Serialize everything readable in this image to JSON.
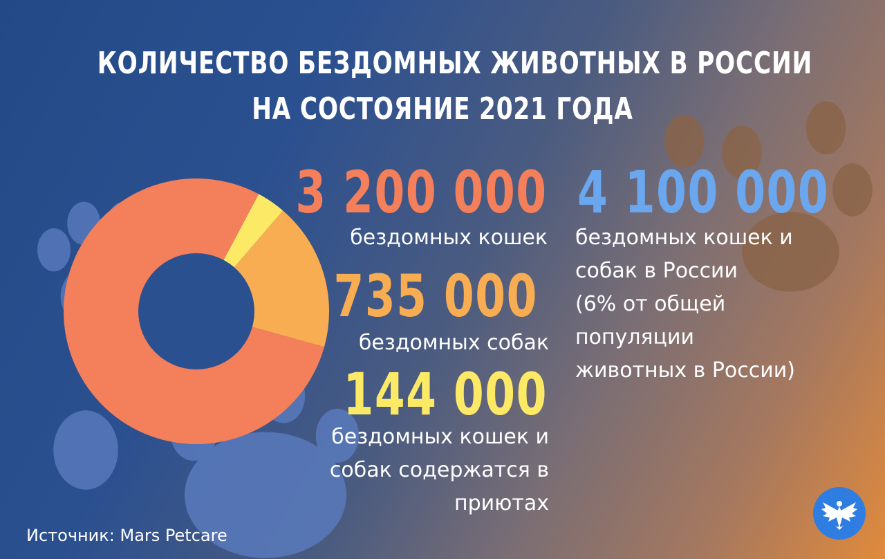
{
  "title_line1": "КОЛИЧЕСТВО БЕЗДОМНЫХ ЖИВОТНЫХ В РОССИИ",
  "title_line2": "НА СОСТОЯНИЕ 2021 ГОДА",
  "stats": {
    "cats_value": "3 200 000",
    "cats_label": "бездомных кошек",
    "dogs_value": "735 000",
    "dogs_label": "бездомных собак",
    "shelters_value": "144 000",
    "shelters_label_lines": [
      "бездомных кошек и",
      "собак содержатся в",
      "приютах"
    ],
    "total_value": "4 100 000",
    "total_label_lines": [
      "бездомных кошек и",
      "собак в России",
      "(6% от общей",
      "популяции",
      "животных в России)"
    ]
  },
  "source": "Источник: Mars Petcare",
  "colors": {
    "cats": "#f47f5b",
    "dogs": "#f9ad52",
    "shelters": "#fcea66",
    "total": "#6ba7ef",
    "hole": "#2b5090",
    "paw_blue": "#5b7cc0",
    "paw_brown": "#8a6448",
    "logo": "#2f7de1"
  },
  "chart_data": {
    "type": "pie",
    "variant": "donut",
    "categories": [
      "бездомных кошек",
      "бездомных собак",
      "бездомных кошек и собак содержатся в приютах"
    ],
    "values": [
      3200000,
      735000,
      144000
    ],
    "title": "КОЛИЧЕСТВО БЕЗДОМНЫХ ЖИВОТНЫХ В РОССИИ НА СОСТОЯНИЕ 2021 ГОДА",
    "legend": "none"
  },
  "icons": [
    "paw-print-icon",
    "eagle-logo-icon"
  ]
}
